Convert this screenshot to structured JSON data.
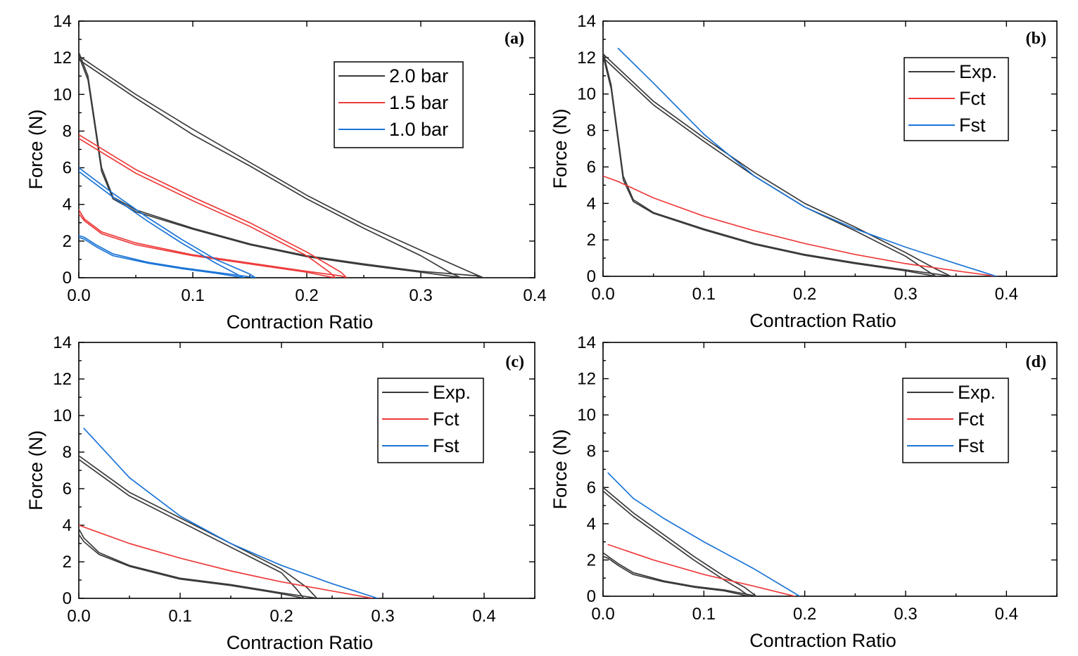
{
  "colors": {
    "exp": "#3a3a3a",
    "red": "#ee3b3b",
    "blue": "#1a74d6"
  },
  "chart_data": [
    {
      "panel": "(a)",
      "type": "line",
      "xlabel": "Contraction Ratio",
      "ylabel": "Force (N)",
      "xlim": [
        0,
        0.4
      ],
      "ylim": [
        0,
        14
      ],
      "xticks": [
        "0.0",
        "0.1",
        "0.2",
        "0.3",
        "0.4"
      ],
      "yticks": [
        "0",
        "2",
        "4",
        "6",
        "8",
        "10",
        "12",
        "14"
      ],
      "legend": [
        {
          "label": "2.0 bar",
          "color": "#3a3a3a"
        },
        {
          "label": "1.5 bar",
          "color": "#ee3b3b"
        },
        {
          "label": "1.0 bar",
          "color": "#1a74d6"
        }
      ],
      "series": [
        {
          "name": "2.0 bar",
          "color": "#3a3a3a",
          "x": [
            0,
            0.05,
            0.1,
            0.15,
            0.2,
            0.25,
            0.3,
            0.34,
            0.355,
            0.35,
            0.3,
            0.25,
            0.2,
            0.15,
            0.1,
            0.05,
            0.03,
            0.02,
            0.008,
            0
          ],
          "y": [
            12.1,
            10.0,
            8.1,
            6.3,
            4.5,
            2.9,
            1.5,
            0.4,
            0,
            0.1,
            0.35,
            0.75,
            1.2,
            1.85,
            2.7,
            3.7,
            4.4,
            6.0,
            11.0,
            12.3
          ]
        },
        {
          "name": "2.0 bar",
          "color": "#3a3a3a",
          "x": [
            0,
            0.05,
            0.1,
            0.15,
            0.2,
            0.25,
            0.3,
            0.325,
            0.335,
            0.33,
            0.3,
            0.25,
            0.2,
            0.15,
            0.1,
            0.05,
            0.03,
            0.02,
            0.008,
            0
          ],
          "y": [
            11.9,
            9.8,
            7.8,
            6.1,
            4.3,
            2.7,
            1.2,
            0.3,
            0,
            0.05,
            0.3,
            0.7,
            1.15,
            1.8,
            2.65,
            3.6,
            4.3,
            5.8,
            10.8,
            12.1
          ]
        },
        {
          "name": "1.5 bar",
          "color": "#ee3b3b",
          "x": [
            0,
            0.05,
            0.1,
            0.15,
            0.2,
            0.23,
            0.235,
            0.23,
            0.2,
            0.15,
            0.1,
            0.05,
            0.02,
            0.005,
            0
          ],
          "y": [
            7.8,
            5.9,
            4.4,
            3.0,
            1.4,
            0.3,
            0,
            0.1,
            0.35,
            0.8,
            1.25,
            1.9,
            2.5,
            3.2,
            3.7
          ]
        },
        {
          "name": "1.5 bar",
          "color": "#ee3b3b",
          "x": [
            0,
            0.05,
            0.1,
            0.15,
            0.2,
            0.22,
            0.225,
            0.22,
            0.2,
            0.15,
            0.1,
            0.05,
            0.02,
            0.005,
            0
          ],
          "y": [
            7.6,
            5.7,
            4.2,
            2.8,
            1.2,
            0.3,
            0,
            0.05,
            0.3,
            0.75,
            1.2,
            1.8,
            2.4,
            3.1,
            3.5
          ]
        },
        {
          "name": "1.0 bar",
          "color": "#1a74d6",
          "x": [
            0,
            0.03,
            0.06,
            0.09,
            0.12,
            0.15,
            0.155,
            0.15,
            0.12,
            0.09,
            0.06,
            0.03,
            0.015,
            0.005,
            0
          ],
          "y": [
            6.0,
            4.6,
            3.3,
            2.1,
            1.0,
            0.2,
            0,
            0.05,
            0.3,
            0.55,
            0.85,
            1.3,
            1.8,
            2.2,
            2.3
          ]
        },
        {
          "name": "1.0 bar",
          "color": "#1a74d6",
          "x": [
            0,
            0.03,
            0.06,
            0.09,
            0.12,
            0.14,
            0.145,
            0.14,
            0.12,
            0.09,
            0.06,
            0.03,
            0.015,
            0.005,
            0
          ],
          "y": [
            5.8,
            4.4,
            3.1,
            1.9,
            0.8,
            0.15,
            0,
            0.05,
            0.25,
            0.5,
            0.8,
            1.2,
            1.7,
            2.1,
            2.2
          ]
        }
      ]
    },
    {
      "panel": "(b)",
      "type": "line",
      "xlabel": "Contraction Ratio",
      "ylabel": "Force (N)",
      "xlim": [
        0,
        0.45
      ],
      "ylim": [
        0,
        14
      ],
      "xticks": [
        "0.0",
        "0.1",
        "0.2",
        "0.3",
        "0.4"
      ],
      "yticks": [
        "0",
        "2",
        "4",
        "6",
        "8",
        "10",
        "12",
        "14"
      ],
      "legend": [
        {
          "label": "Exp.",
          "color": "#3a3a3a"
        },
        {
          "label": "Fct",
          "color": "#ee3b3b"
        },
        {
          "label": "Fst",
          "color": "#1a74d6"
        }
      ],
      "series": [
        {
          "name": "Exp.",
          "color": "#3a3a3a",
          "x": [
            0,
            0.05,
            0.1,
            0.15,
            0.2,
            0.25,
            0.3,
            0.33,
            0.345,
            0.34,
            0.3,
            0.25,
            0.2,
            0.15,
            0.1,
            0.05,
            0.03,
            0.02,
            0.008,
            0
          ],
          "y": [
            12.2,
            9.6,
            7.6,
            5.7,
            4.0,
            2.7,
            1.3,
            0.4,
            0,
            0.05,
            0.35,
            0.75,
            1.2,
            1.8,
            2.6,
            3.5,
            4.2,
            5.5,
            10.5,
            12.3
          ]
        },
        {
          "name": "Exp.",
          "color": "#3a3a3a",
          "x": [
            0,
            0.05,
            0.1,
            0.15,
            0.2,
            0.25,
            0.3,
            0.32,
            0.33,
            0.325,
            0.3,
            0.25,
            0.2,
            0.15,
            0.1,
            0.05,
            0.03,
            0.02,
            0.008,
            0
          ],
          "y": [
            12.0,
            9.4,
            7.4,
            5.5,
            3.8,
            2.5,
            1.1,
            0.35,
            0,
            0.05,
            0.3,
            0.7,
            1.15,
            1.75,
            2.55,
            3.45,
            4.1,
            5.3,
            10.3,
            12.1
          ]
        },
        {
          "name": "Fct",
          "color": "#ee3b3b",
          "x": [
            0,
            0.015,
            0.05,
            0.1,
            0.15,
            0.2,
            0.25,
            0.3,
            0.35,
            0.39
          ],
          "y": [
            5.5,
            5.2,
            4.3,
            3.3,
            2.5,
            1.8,
            1.2,
            0.7,
            0.3,
            0
          ]
        },
        {
          "name": "Fst",
          "color": "#1a74d6",
          "x": [
            0.015,
            0.05,
            0.1,
            0.15,
            0.2,
            0.25,
            0.3,
            0.35,
            0.39
          ],
          "y": [
            12.5,
            10.6,
            7.8,
            5.5,
            3.8,
            2.6,
            1.6,
            0.7,
            0
          ]
        }
      ]
    },
    {
      "panel": "(c)",
      "type": "line",
      "xlabel": "Contraction Ratio",
      "ylabel": "Force (N)",
      "xlim": [
        0,
        0.45
      ],
      "ylim": [
        0,
        14
      ],
      "xticks": [
        "0.0",
        "0.1",
        "0.2",
        "0.3",
        "0.4"
      ],
      "yticks": [
        "0",
        "2",
        "4",
        "6",
        "8",
        "10",
        "12",
        "14"
      ],
      "legend": [
        {
          "label": "Exp.",
          "color": "#3a3a3a"
        },
        {
          "label": "Fct",
          "color": "#ee3b3b"
        },
        {
          "label": "Fst",
          "color": "#1a74d6"
        }
      ],
      "series": [
        {
          "name": "Exp.",
          "color": "#3a3a3a",
          "x": [
            0,
            0.05,
            0.1,
            0.15,
            0.2,
            0.225,
            0.235,
            0.23,
            0.2,
            0.15,
            0.1,
            0.05,
            0.02,
            0.005,
            0
          ],
          "y": [
            7.8,
            5.8,
            4.4,
            3.0,
            1.6,
            0.6,
            0,
            0.05,
            0.3,
            0.75,
            1.1,
            1.8,
            2.5,
            3.3,
            3.8
          ]
        },
        {
          "name": "Exp.",
          "color": "#3a3a3a",
          "x": [
            0,
            0.05,
            0.1,
            0.15,
            0.2,
            0.215,
            0.222,
            0.218,
            0.2,
            0.15,
            0.1,
            0.05,
            0.02,
            0.005,
            0
          ],
          "y": [
            7.6,
            5.6,
            4.2,
            2.8,
            1.4,
            0.5,
            0,
            0.05,
            0.25,
            0.7,
            1.05,
            1.75,
            2.4,
            3.1,
            3.5
          ]
        },
        {
          "name": "Fct",
          "color": "#ee3b3b",
          "x": [
            0,
            0.05,
            0.1,
            0.15,
            0.2,
            0.25,
            0.29
          ],
          "y": [
            4.0,
            3.0,
            2.2,
            1.5,
            0.9,
            0.4,
            0
          ]
        },
        {
          "name": "Fst",
          "color": "#1a74d6",
          "x": [
            0.005,
            0.05,
            0.1,
            0.15,
            0.2,
            0.25,
            0.295
          ],
          "y": [
            9.3,
            6.6,
            4.5,
            3.0,
            1.8,
            0.8,
            0
          ]
        }
      ]
    },
    {
      "panel": "(d)",
      "type": "line",
      "xlabel": "Contraction Ratio",
      "ylabel": "Force (N)",
      "xlim": [
        0,
        0.45
      ],
      "ylim": [
        0,
        14
      ],
      "xticks": [
        "0.0",
        "0.1",
        "0.2",
        "0.3",
        "0.4"
      ],
      "yticks": [
        "0",
        "2",
        "4",
        "6",
        "8",
        "10",
        "12",
        "14"
      ],
      "legend": [
        {
          "label": "Exp.",
          "color": "#3a3a3a"
        },
        {
          "label": "Fct",
          "color": "#ee3b3b"
        },
        {
          "label": "Fst",
          "color": "#1a74d6"
        }
      ],
      "series": [
        {
          "name": "Exp.",
          "color": "#3a3a3a",
          "x": [
            0,
            0.03,
            0.06,
            0.09,
            0.12,
            0.14,
            0.152,
            0.148,
            0.12,
            0.09,
            0.06,
            0.03,
            0.015,
            0.005,
            0
          ],
          "y": [
            6.0,
            4.6,
            3.4,
            2.2,
            1.1,
            0.5,
            0,
            0.05,
            0.35,
            0.55,
            0.85,
            1.3,
            1.8,
            2.2,
            2.4
          ]
        },
        {
          "name": "Exp.",
          "color": "#3a3a3a",
          "x": [
            0,
            0.03,
            0.06,
            0.09,
            0.12,
            0.135,
            0.145,
            0.14,
            0.12,
            0.09,
            0.06,
            0.03,
            0.015,
            0.005,
            0
          ],
          "y": [
            5.8,
            4.4,
            3.2,
            2.0,
            0.9,
            0.4,
            0,
            0.05,
            0.3,
            0.5,
            0.8,
            1.2,
            1.7,
            2.1,
            2.2
          ]
        },
        {
          "name": "Fct",
          "color": "#ee3b3b",
          "x": [
            0.005,
            0.05,
            0.1,
            0.15,
            0.19
          ],
          "y": [
            2.85,
            2.0,
            1.2,
            0.55,
            0
          ]
        },
        {
          "name": "Fst",
          "color": "#1a74d6",
          "x": [
            0.005,
            0.03,
            0.06,
            0.1,
            0.15,
            0.195
          ],
          "y": [
            6.8,
            5.4,
            4.3,
            3.0,
            1.5,
            0
          ]
        }
      ]
    }
  ]
}
